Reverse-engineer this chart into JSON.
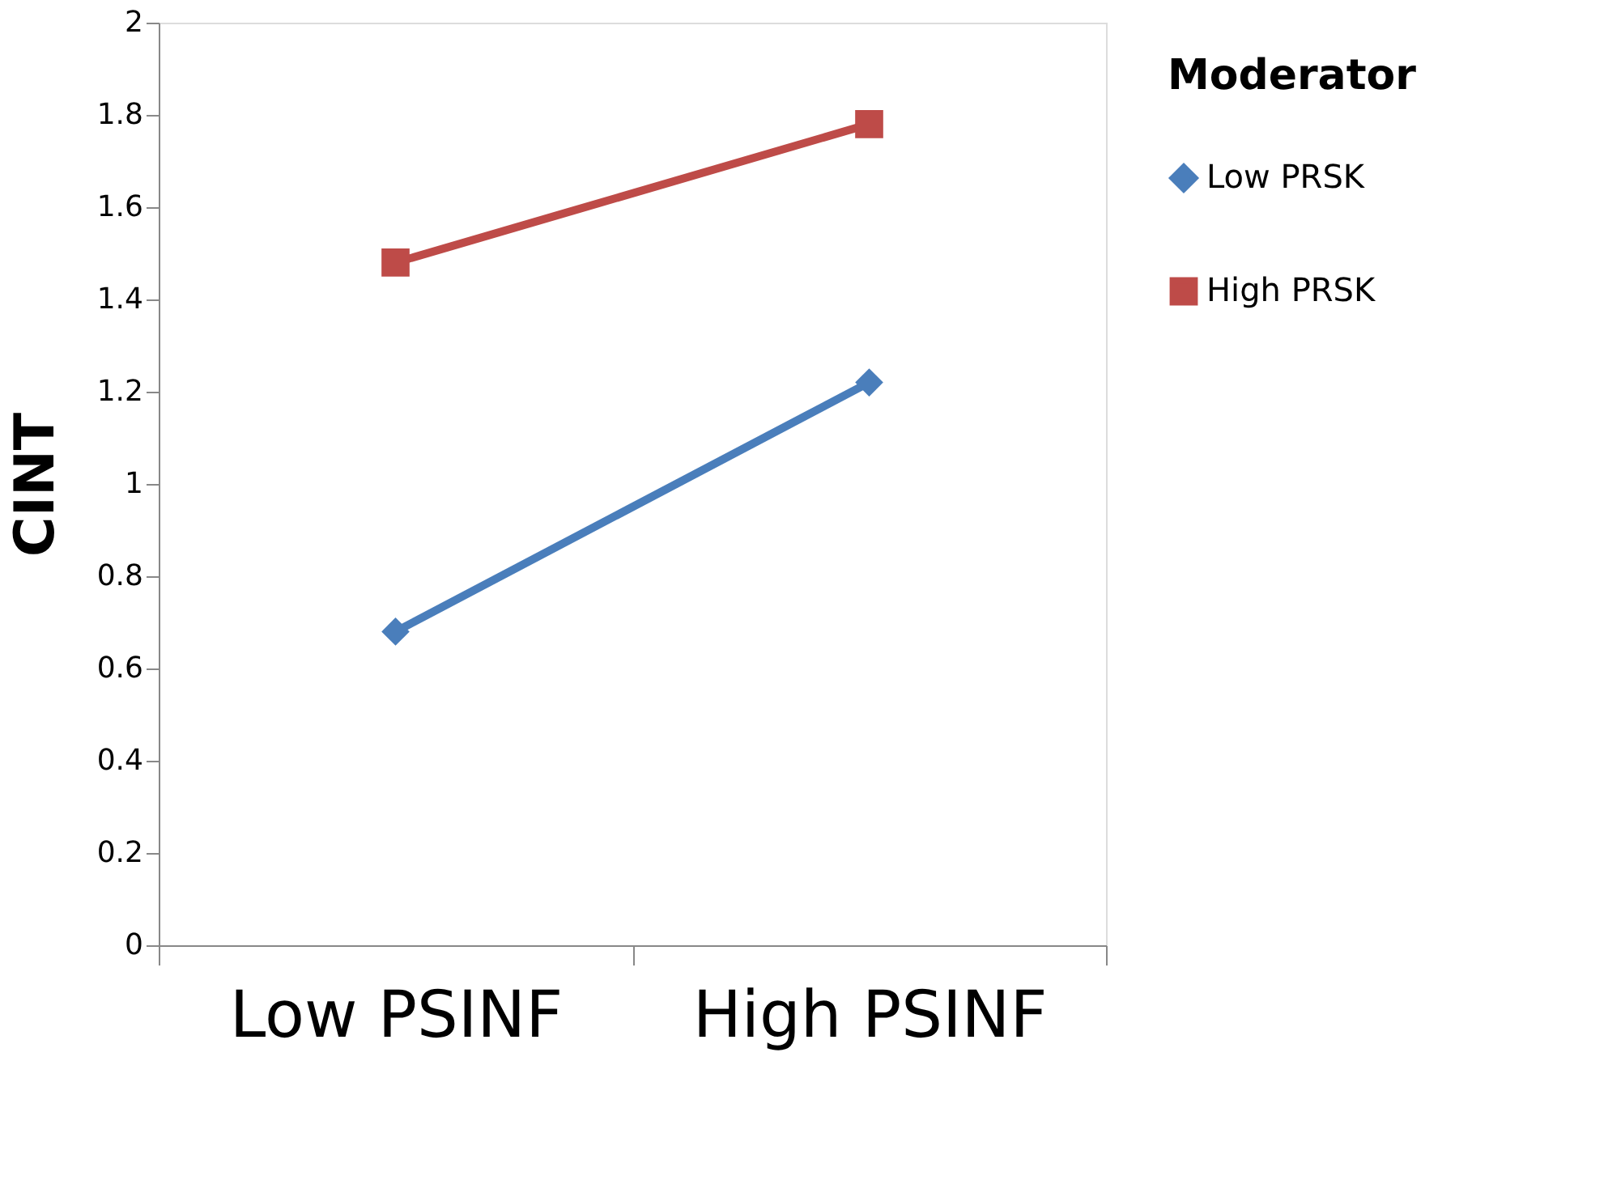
{
  "chart_data": {
    "type": "line",
    "ylabel": "CINT",
    "legend_title": "Moderator",
    "legend": "right",
    "grid": false,
    "categories": [
      "Low PSINF",
      "High PSINF"
    ],
    "ylim": [
      0,
      2
    ],
    "yticks": [
      0,
      0.2,
      0.4,
      0.6,
      0.8,
      1,
      1.2,
      1.4,
      1.6,
      1.8,
      2
    ],
    "series": [
      {
        "name": "Low PRSK",
        "color": "#4a7ebb",
        "marker": "diamond",
        "values": [
          0.68,
          1.22
        ]
      },
      {
        "name": "High PRSK",
        "color": "#be4b48",
        "marker": "square",
        "values": [
          1.48,
          1.78
        ]
      }
    ]
  }
}
